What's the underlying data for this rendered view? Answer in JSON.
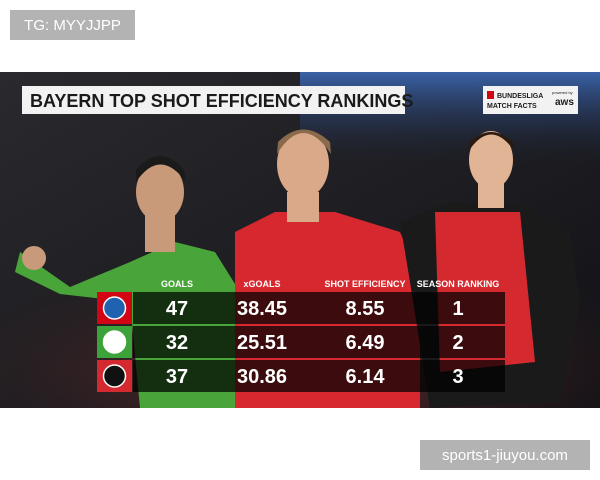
{
  "watermark_top": "TG: MYYJJPP",
  "graphic": {
    "title": "BAYERN TOP SHOT EFFICIENCY RANKINGS",
    "logo": {
      "line1": "BUNDESLIGA",
      "line2": "MATCH FACTS",
      "powered": "powered by",
      "brand": "aws"
    },
    "table": {
      "columns": [
        "GOALS",
        "xGOALS",
        "SHOT EFFICIENCY",
        "SEASON RANKING"
      ],
      "rows": [
        [
          47,
          38.45,
          8.55,
          1
        ],
        [
          32,
          25.51,
          6.49,
          2
        ],
        [
          37,
          30.86,
          6.14,
          3
        ]
      ]
    }
  },
  "watermark_bottom": "sports1-jiuyou.com"
}
